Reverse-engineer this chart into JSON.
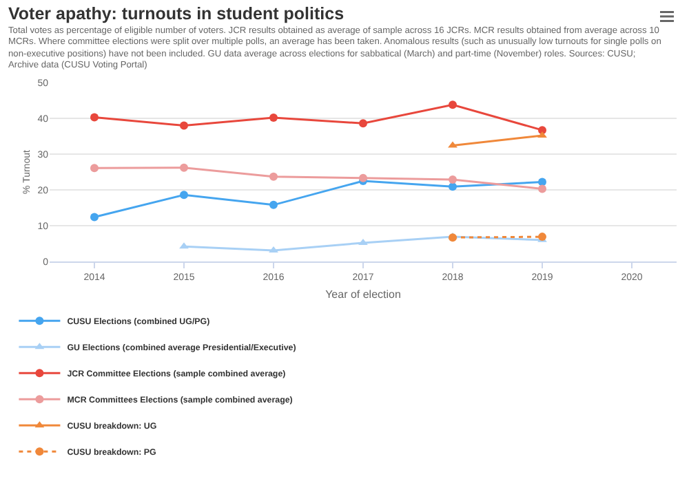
{
  "chart_data": {
    "type": "line",
    "title": "Voter apathy: turnouts in student politics",
    "subtitle": "Total votes as percentage of eligible number of voters. JCR results obtained as average of sample across 16 JCRs. MCR results obtained from average across 10 MCRs. Where committee elections were split over multiple polls, an average has been taken. Anomalous results (such as unusually low turnouts for single polls on non-executive positions) have not been included. GU data average across elections for sabbatical (March) and part-time (November) roles. Sources: CUSU; Archive data (CUSU Voting Portal)",
    "xlabel": "Year of election",
    "ylabel": "% Turnout",
    "x": [
      2014,
      2015,
      2016,
      2017,
      2018,
      2019
    ],
    "xlim": [
      2013.5,
      2020.5
    ],
    "xticks": [
      2014,
      2015,
      2016,
      2017,
      2018,
      2019,
      2020
    ],
    "ylim": [
      0,
      50
    ],
    "yticks": [
      0,
      10,
      20,
      30,
      40,
      50
    ],
    "grid": "y",
    "legend": "bottom",
    "marker": "circle",
    "line_style": "solid",
    "series": [
      {
        "name": "CUSU Elections (combined UG/PG)",
        "color": "#45a5ef",
        "values": [
          12.4,
          18.6,
          15.8,
          22.5,
          20.9,
          22.2
        ]
      },
      {
        "name": "GU Elections (combined average Presidential/Executive)",
        "color": "#a8d0f5",
        "marker": "triangle",
        "values": [
          null,
          4.2,
          3.1,
          5.2,
          6.9,
          6.0
        ]
      },
      {
        "name": "JCR Committee Elections (sample combined average)",
        "color": "#e8473c",
        "values": [
          40.3,
          38.0,
          40.2,
          38.6,
          43.8,
          36.7
        ]
      },
      {
        "name": "MCR Committees Elections (sample combined average)",
        "color": "#ec9c9c",
        "values": [
          26.1,
          26.2,
          23.7,
          23.3,
          22.9,
          20.3
        ]
      },
      {
        "name": "CUSU breakdown: UG",
        "color": "#f0883a",
        "marker": "triangle",
        "values": [
          null,
          null,
          null,
          null,
          32.4,
          35.2
        ]
      },
      {
        "name": "CUSU breakdown: PG",
        "color": "#f0883a",
        "line_style": "dotted",
        "values": [
          null,
          null,
          null,
          null,
          6.7,
          6.9
        ]
      }
    ]
  }
}
